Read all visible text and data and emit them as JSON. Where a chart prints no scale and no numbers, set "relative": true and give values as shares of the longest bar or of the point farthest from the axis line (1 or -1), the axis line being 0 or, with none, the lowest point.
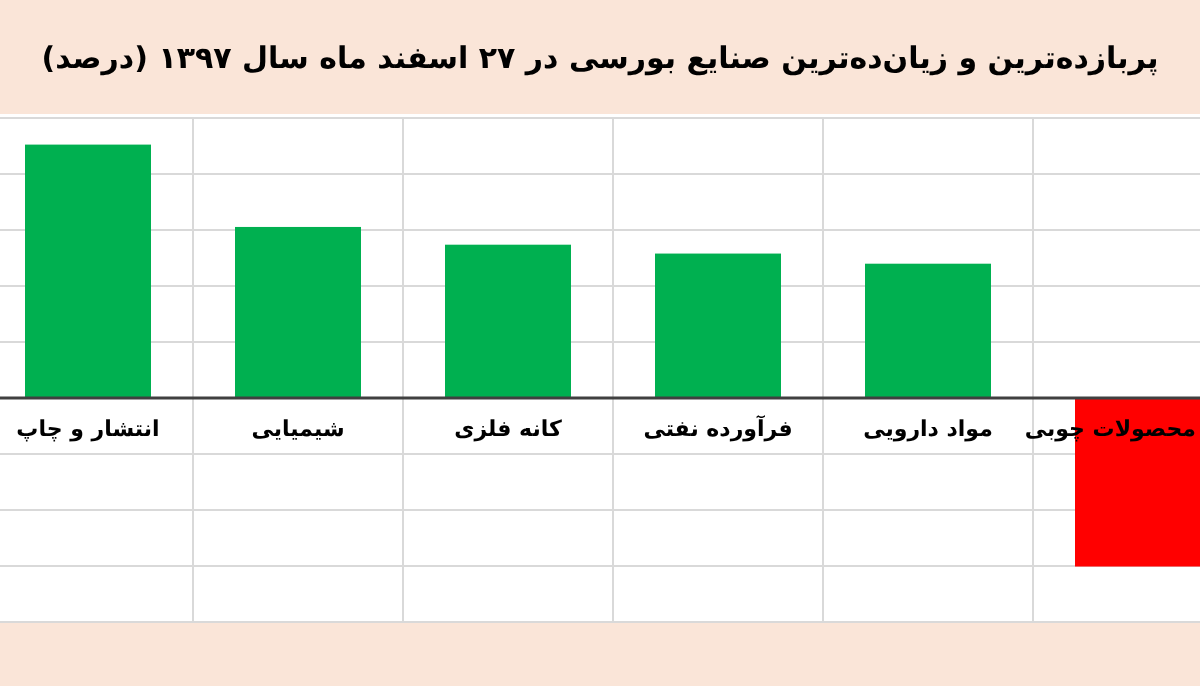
{
  "chart_data": {
    "type": "bar",
    "title": "پربازده‌ترین و زیان‌ده‌ترین صنایع بورسی در ۲۷ اسفند ماه سال ۱۳۹۷ (درصد)",
    "categories": [
      "انتشار و چاپ",
      "شیمیایی",
      "کانه فلزی",
      "فرآورده نفتی",
      "مواد دارویی",
      "محصولات چوبی"
    ],
    "values": [
      1,
      0.675,
      0.605,
      0.57,
      0.53,
      -0.665
    ],
    "colors": [
      "#00b050",
      "#00b050",
      "#00b050",
      "#00b050",
      "#00b050",
      "#ff0000"
    ],
    "relative": true,
    "grid": true
  }
}
